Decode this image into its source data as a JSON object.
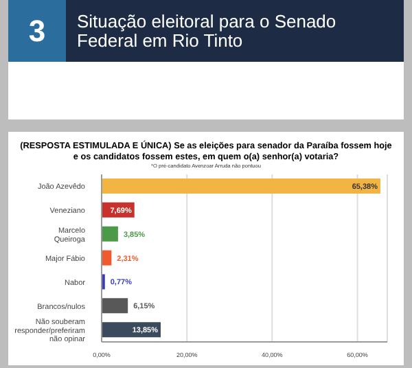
{
  "chart_data": {
    "type": "bar",
    "orientation": "horizontal",
    "title": "Situação eleitoral para o Senado Federal em Rio Tinto",
    "subtitle": "(RESPOSTA ESTIMULADA E ÚNICA) Se as eleições para senador da Paraíba fossem hoje e os candidatos fossem estes, em quem o(a) senhor(a) votaria?",
    "annotations": [
      "3",
      "*O pré-candidato Avenzoar Arruda não pontuou"
    ],
    "categories": [
      "João Azevêdo",
      "Veneziano",
      "Marcelo Queiroga",
      "Major Fábio",
      "Nabor",
      "Brancos/nulos",
      "Não souberam responder/preferiram não opinar"
    ],
    "values": [
      65.38,
      7.69,
      3.85,
      2.31,
      0.77,
      6.15,
      13.85
    ],
    "colors": [
      "#f2b442",
      "#c8322c",
      "#4b9a47",
      "#ef5a2e",
      "#3d3db8",
      "#585858",
      "#3b4a5c"
    ],
    "value_labels": [
      "65,38%",
      "7,69%",
      "3,85%",
      "2,31%",
      "0,77%",
      "6,15%",
      "13,85%"
    ],
    "xlim": [
      0,
      67
    ],
    "xticks": [
      {
        "value": 0,
        "label": "0,00%"
      },
      {
        "value": 20,
        "label": "20,00%"
      },
      {
        "value": 40,
        "label": "40,00%"
      },
      {
        "value": 60,
        "label": "60,00%"
      }
    ],
    "grid": "x"
  }
}
